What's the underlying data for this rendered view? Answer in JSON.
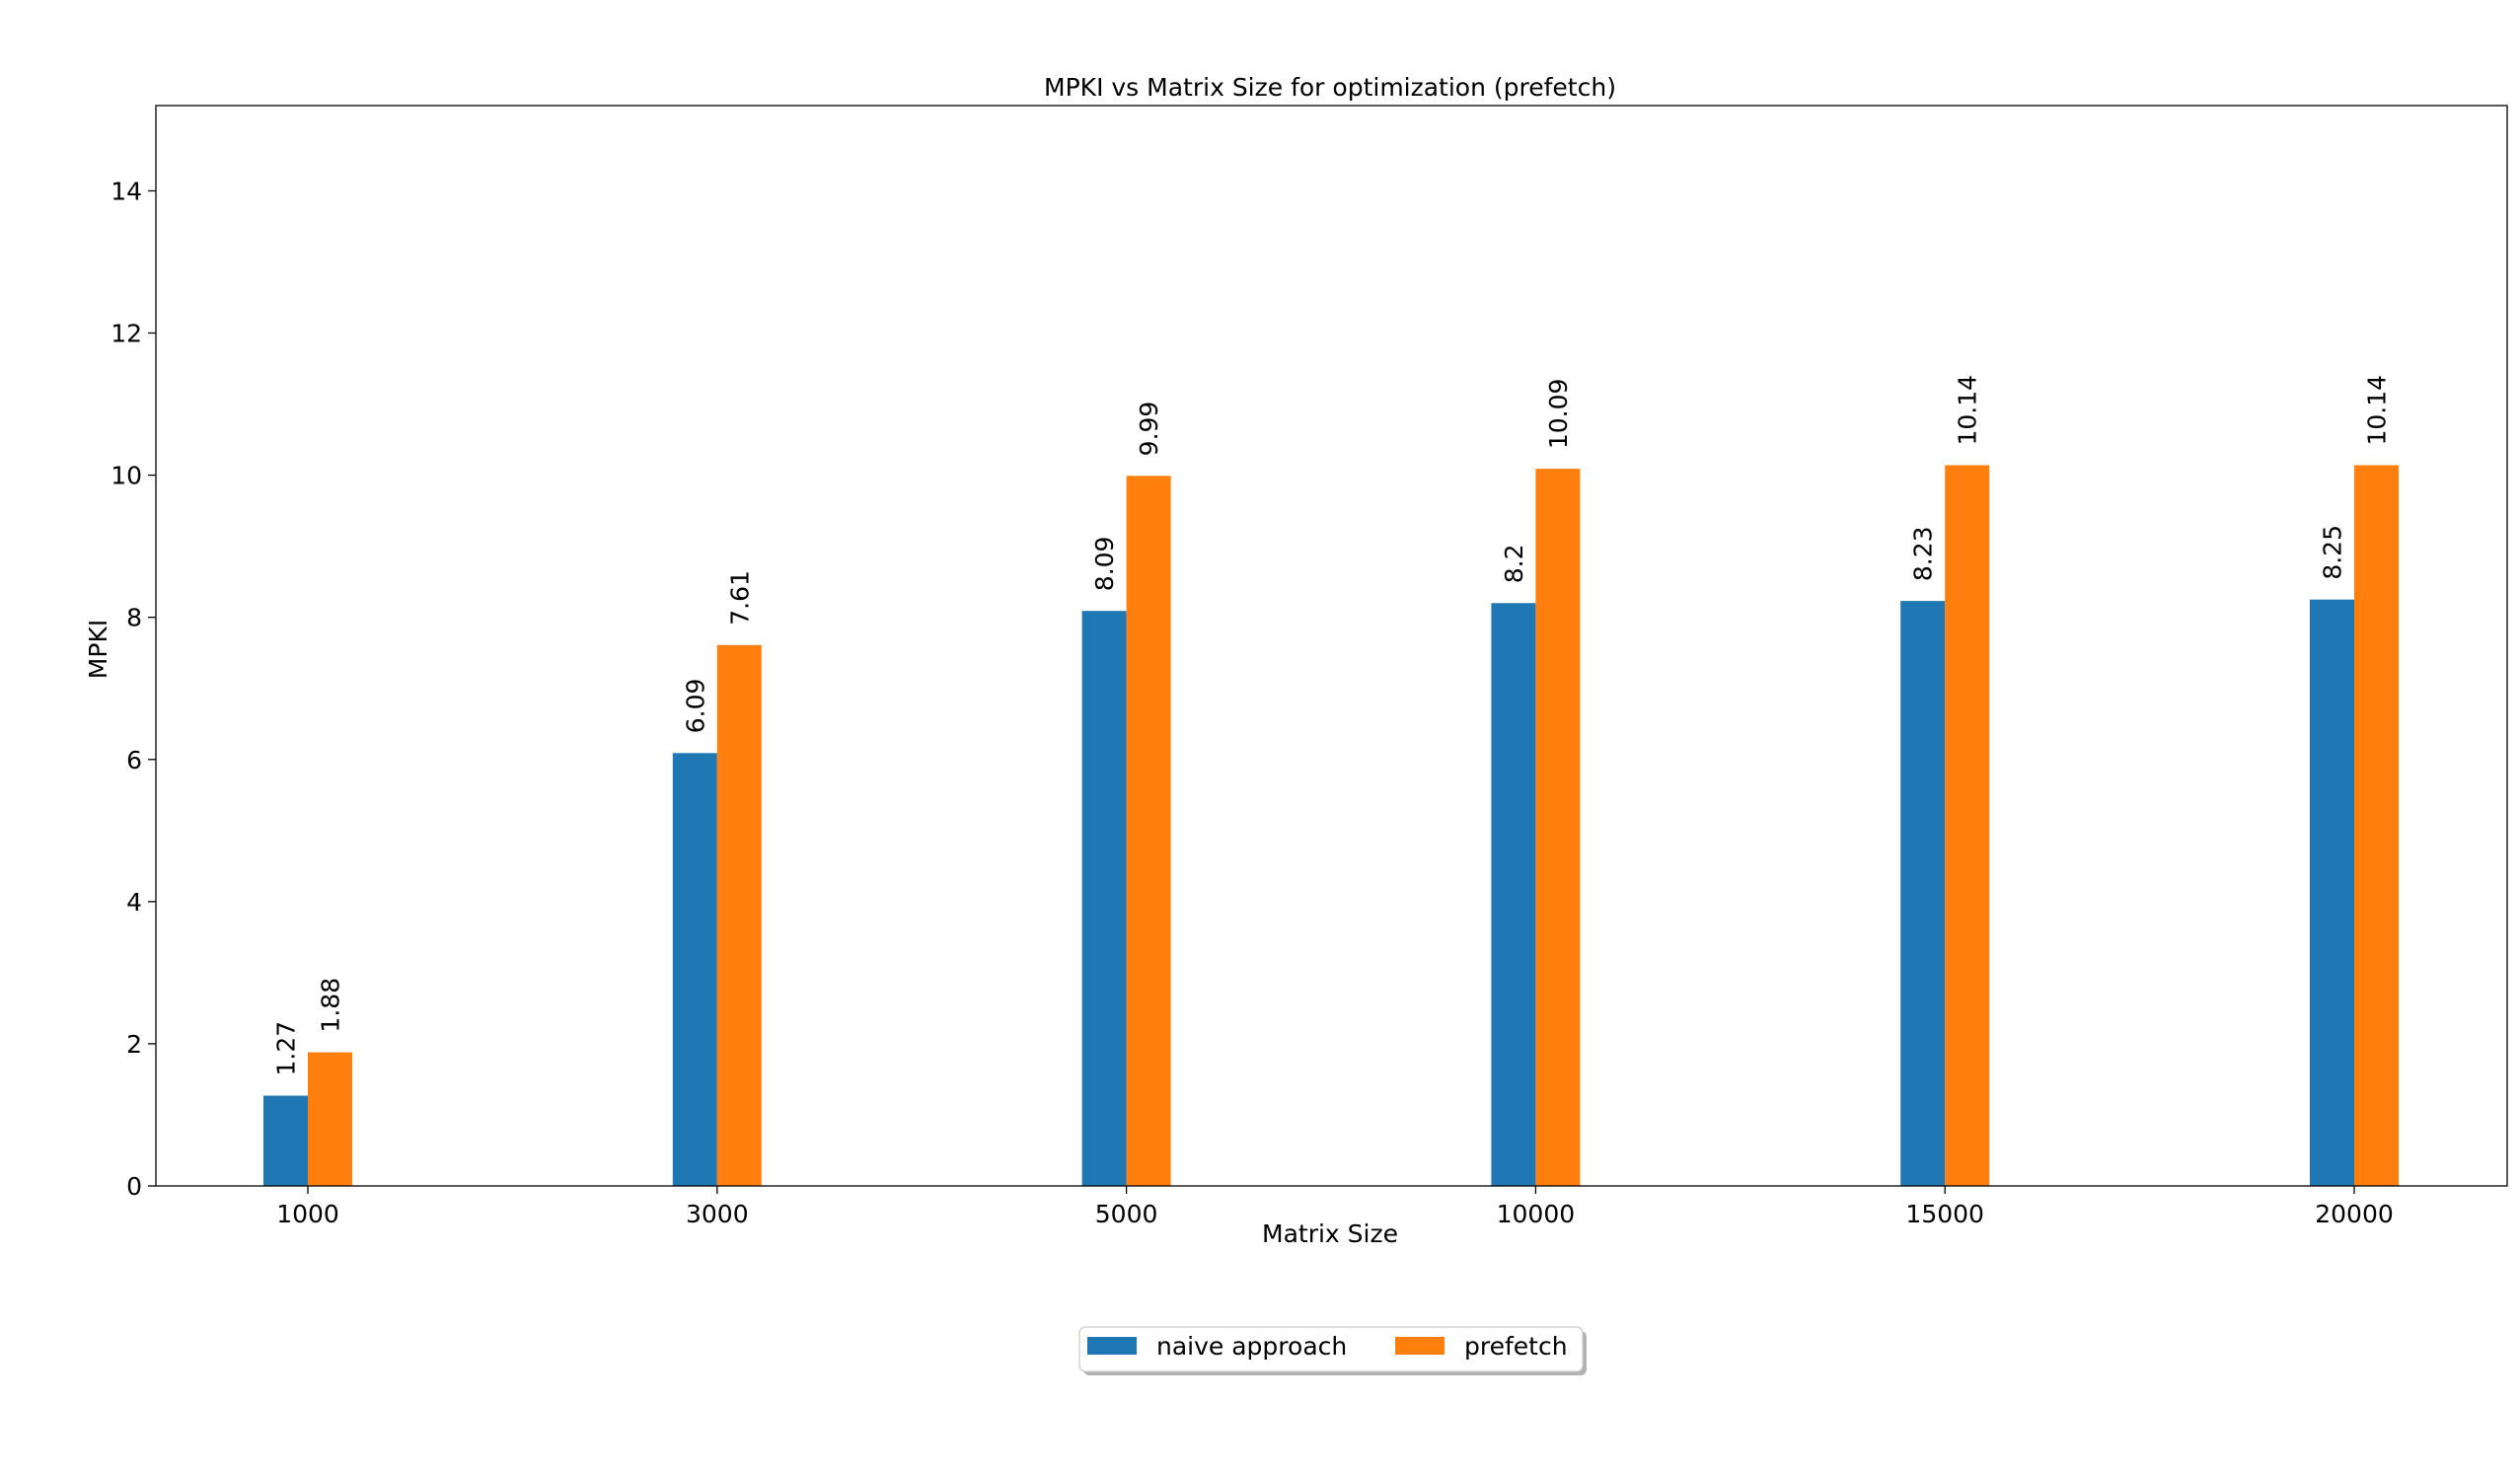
{
  "chart_data": {
    "type": "bar",
    "title": "MPKI vs Matrix Size for optimization (prefetch)",
    "xlabel": "Matrix Size",
    "ylabel": "MPKI",
    "categories": [
      "1000",
      "3000",
      "5000",
      "10000",
      "15000",
      "20000"
    ],
    "series": [
      {
        "name": "naive approach",
        "color": "#1f77b4",
        "values": [
          1.27,
          6.09,
          8.09,
          8.2,
          8.23,
          8.25
        ]
      },
      {
        "name": "prefetch",
        "color": "#ff7f0e",
        "values": [
          1.88,
          7.61,
          9.99,
          10.09,
          10.14,
          10.14
        ]
      }
    ],
    "ylim": [
      0,
      15.2
    ],
    "yticks": [
      0,
      2,
      4,
      6,
      8,
      10,
      12,
      14
    ],
    "grid": false,
    "legend_position": "bottom-center"
  }
}
